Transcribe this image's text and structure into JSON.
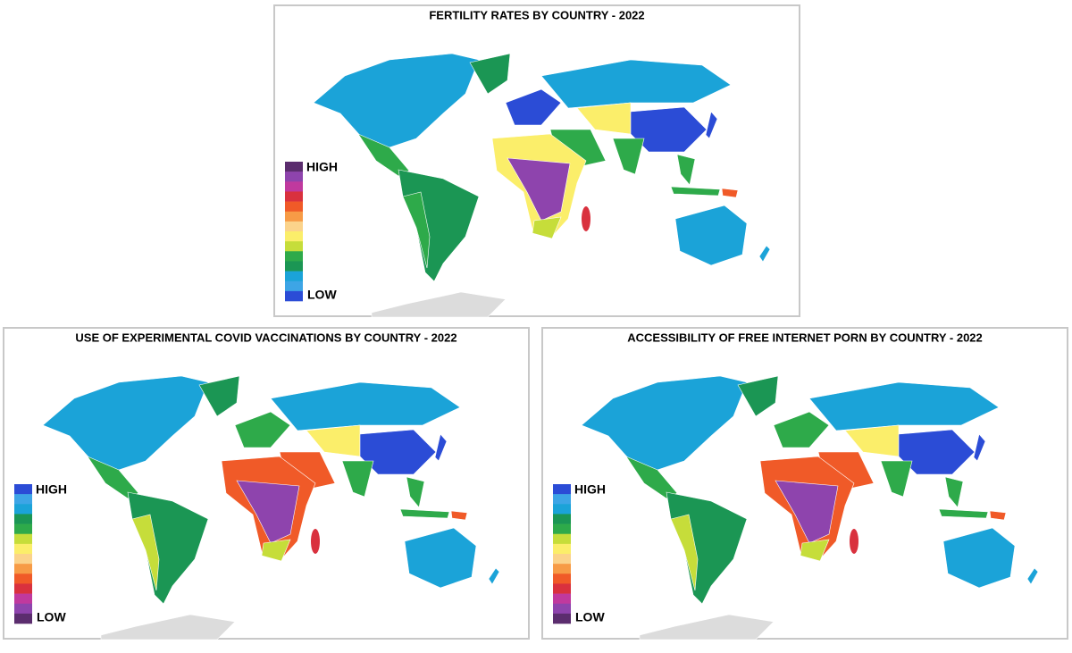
{
  "panels": [
    {
      "title": "FERTILITY RATES BY COUNTRY - 2022",
      "legend": {
        "high": "HIGH",
        "low": "LOW",
        "colors": [
          "#5b2d6e",
          "#8e44ad",
          "#c0399e",
          "#d9313e",
          "#f05a28",
          "#f79b46",
          "#fbd38b",
          "#fbee6a",
          "#c6dd3a",
          "#2eaa4a",
          "#1b9654",
          "#1ba3d8",
          "#3da5e6",
          "#2b4cd6"
        ]
      }
    },
    {
      "title": "USE OF EXPERIMENTAL COVID VACCINATIONS BY COUNTRY - 2022",
      "legend": {
        "high": "HIGH",
        "low": "LOW",
        "colors": [
          "#2b4cd6",
          "#3da5e6",
          "#1ba3d8",
          "#1b9654",
          "#2eaa4a",
          "#c6dd3a",
          "#fbee6a",
          "#fbd38b",
          "#f79b46",
          "#f05a28",
          "#d9313e",
          "#c0399e",
          "#8e44ad",
          "#5b2d6e"
        ]
      }
    },
    {
      "title": "ACCESSIBILITY OF FREE INTERNET PORN BY COUNTRY - 2022",
      "legend": {
        "high": "HIGH",
        "low": "LOW",
        "colors": [
          "#2b4cd6",
          "#3da5e6",
          "#1ba3d8",
          "#1b9654",
          "#2eaa4a",
          "#c6dd3a",
          "#fbee6a",
          "#fbd38b",
          "#f79b46",
          "#f05a28",
          "#d9313e",
          "#c0399e",
          "#8e44ad",
          "#5b2d6e"
        ]
      }
    }
  ]
}
